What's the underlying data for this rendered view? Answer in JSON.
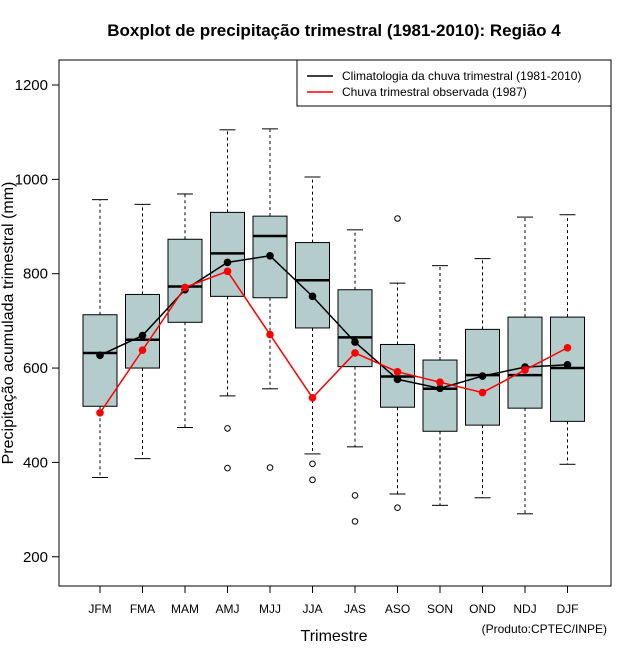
{
  "chart_data": {
    "type": "boxplot",
    "title": "Boxplot de precipitação trimestral (1981-2010): Região 4",
    "xlabel": "Trimestre",
    "ylabel": "Precipitação acumulada trimestral (mm)",
    "ylim": [
      138,
      1253
    ],
    "yticks": [
      200,
      400,
      600,
      800,
      1000,
      1200
    ],
    "categories": [
      "JFM",
      "FMA",
      "MAM",
      "AMJ",
      "MJJ",
      "JJA",
      "JAS",
      "ASO",
      "SON",
      "OND",
      "NDJ",
      "DJF"
    ],
    "boxes": [
      {
        "whisker_low": 368,
        "q1": 519,
        "median": 632,
        "q3": 713,
        "whisker_high": 957,
        "outliers": []
      },
      {
        "whisker_low": 408,
        "q1": 600,
        "median": 660,
        "q3": 756,
        "whisker_high": 947,
        "outliers": []
      },
      {
        "whisker_low": 474,
        "q1": 697,
        "median": 773,
        "q3": 873,
        "whisker_high": 969,
        "outliers": []
      },
      {
        "whisker_low": 541,
        "q1": 752,
        "median": 843,
        "q3": 930,
        "whisker_high": 1105,
        "outliers": [
          472,
          388
        ]
      },
      {
        "whisker_low": 556,
        "q1": 749,
        "median": 880,
        "q3": 922,
        "whisker_high": 1107,
        "outliers": [
          389
        ]
      },
      {
        "whisker_low": 418,
        "q1": 685,
        "median": 786,
        "q3": 866,
        "whisker_high": 1005,
        "outliers": [
          397,
          363
        ]
      },
      {
        "whisker_low": 433,
        "q1": 603,
        "median": 665,
        "q3": 766,
        "whisker_high": 893,
        "outliers": [
          330,
          275
        ]
      },
      {
        "whisker_low": 333,
        "q1": 517,
        "median": 582,
        "q3": 650,
        "whisker_high": 780,
        "outliers": [
          917,
          304
        ]
      },
      {
        "whisker_low": 309,
        "q1": 466,
        "median": 556,
        "q3": 617,
        "whisker_high": 817,
        "outliers": []
      },
      {
        "whisker_low": 325,
        "q1": 479,
        "median": 585,
        "q3": 682,
        "whisker_high": 832,
        "outliers": []
      },
      {
        "whisker_low": 291,
        "q1": 515,
        "median": 585,
        "q3": 708,
        "whisker_high": 920,
        "outliers": []
      },
      {
        "whisker_low": 396,
        "q1": 487,
        "median": 600,
        "q3": 708,
        "whisker_high": 925,
        "outliers": []
      }
    ],
    "series": [
      {
        "name": "Climatologia da chuva trimestral (1981-2010)",
        "color": "#000000",
        "values": [
          627,
          669,
          766,
          824,
          838,
          752,
          655,
          576,
          557,
          583,
          602,
          607
        ]
      },
      {
        "name": "Chuva trimestral observada (1987)",
        "color": "#ff0000",
        "values": [
          505,
          638,
          771,
          805,
          671,
          537,
          632,
          592,
          570,
          548,
          596,
          643
        ]
      }
    ],
    "box_fill": "#b4cccc",
    "legend_position": "top-right",
    "grid": false
  },
  "credit": "(Produto:CPTEC/INPE)"
}
